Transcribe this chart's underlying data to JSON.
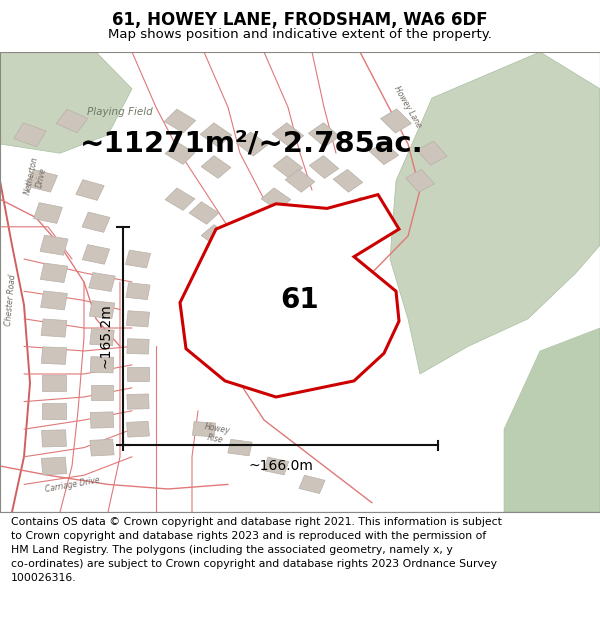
{
  "title": "61, HOWEY LANE, FRODSHAM, WA6 6DF",
  "subtitle": "Map shows position and indicative extent of the property.",
  "area_text": "~11271m²/~2.785ac.",
  "label_61": "61",
  "dim_horiz": "~166.0m",
  "dim_vert": "~165.2m",
  "footer": "Contains OS data © Crown copyright and database right 2021. This information is subject\nto Crown copyright and database rights 2023 and is reproduced with the permission of\nHM Land Registry. The polygons (including the associated geometry, namely x, y\nco-ordinates) are subject to Crown copyright and database rights 2023 Ordnance Survey\n100026316.",
  "red_color": "#cc0000",
  "dim_line_color": "#111111",
  "map_bg": "#e8e3dc",
  "building_color": "#cdc5bc",
  "building_edge": "#b8b0a8",
  "green1": "#c8d4be",
  "green2": "#bcceb2",
  "road_color": "#e07878",
  "road_color2": "#d06060",
  "white": "#ffffff",
  "title_fontsize": 12,
  "subtitle_fontsize": 9.5,
  "area_fontsize": 21,
  "label_fontsize": 20,
  "dim_fontsize": 10,
  "footer_fontsize": 7.8
}
